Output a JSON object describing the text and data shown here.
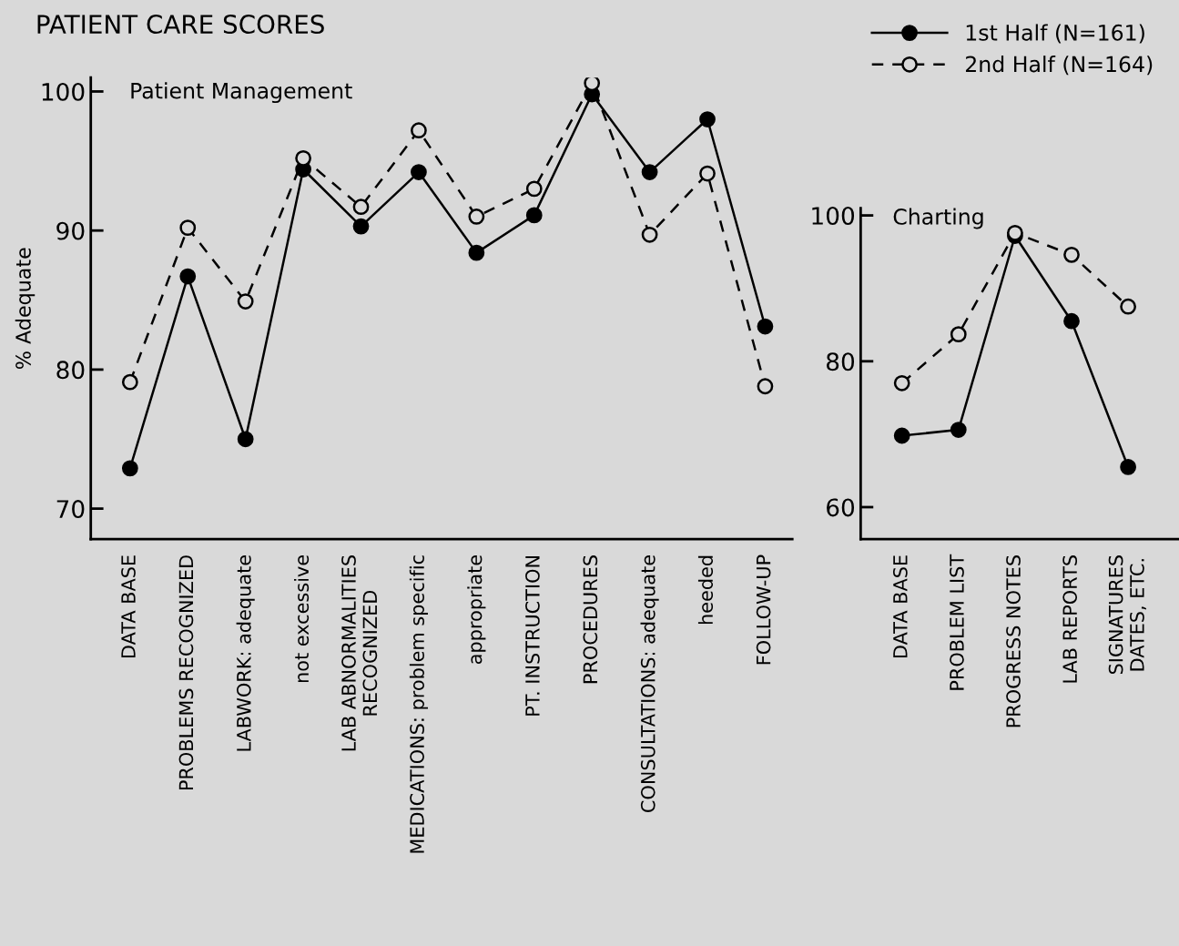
{
  "chart_data": [
    {
      "type": "line",
      "title": "PATIENT CARE SCORES",
      "subtitle": "Patient Management",
      "ylabel": "% Adequate",
      "categories": [
        "DATA BASE",
        "PROBLEMS RECOGNIZED",
        "LABWORK: adequate",
        "not excessive",
        "LAB ABNORMALITIES\nRECOGNIZED",
        "MEDICATIONS: problem specific",
        "appropriate",
        "PT. INSTRUCTION",
        "PROCEDURES",
        "CONSULTATIONS: adequate",
        "heeded",
        "FOLLOW-UP"
      ],
      "series": [
        {
          "name": "1st Half (N=161)",
          "color": "#000000",
          "line_style": "solid",
          "values": [
            72.9,
            86.7,
            75.0,
            94.4,
            90.3,
            94.2,
            88.4,
            91.1,
            99.8,
            94.2,
            98.0,
            83.1
          ]
        },
        {
          "name": "2nd Half (N=164)",
          "color": "#000000",
          "line_style": "dashed",
          "values": [
            79.1,
            90.2,
            84.9,
            95.2,
            91.7,
            97.2,
            91.0,
            93.0,
            100.6,
            89.7,
            94.1,
            78.8
          ]
        }
      ],
      "ylim": [
        67.8,
        101
      ],
      "yticks": [
        70,
        80,
        90,
        100
      ],
      "marker": "circle",
      "grid": false,
      "legend": "top right"
    },
    {
      "type": "line",
      "title": "Charting",
      "categories": [
        "DATA BASE",
        "PROBLEM LIST",
        "PROGRESS NOTES",
        "LAB REPORTS",
        "SIGNATURES\nDATES, ETC."
      ],
      "series": [
        {
          "color": "#000000",
          "line_style": "solid",
          "values": [
            69.8,
            70.6,
            97.2,
            85.5,
            65.5
          ]
        },
        {
          "color": "#000000",
          "line_style": "dashed",
          "values": [
            77.0,
            83.7,
            97.6,
            94.6,
            87.5
          ]
        }
      ],
      "ylim": [
        55.6,
        101
      ],
      "yticks": [
        60,
        80,
        100
      ],
      "marker": "circle",
      "grid": false
    }
  ]
}
